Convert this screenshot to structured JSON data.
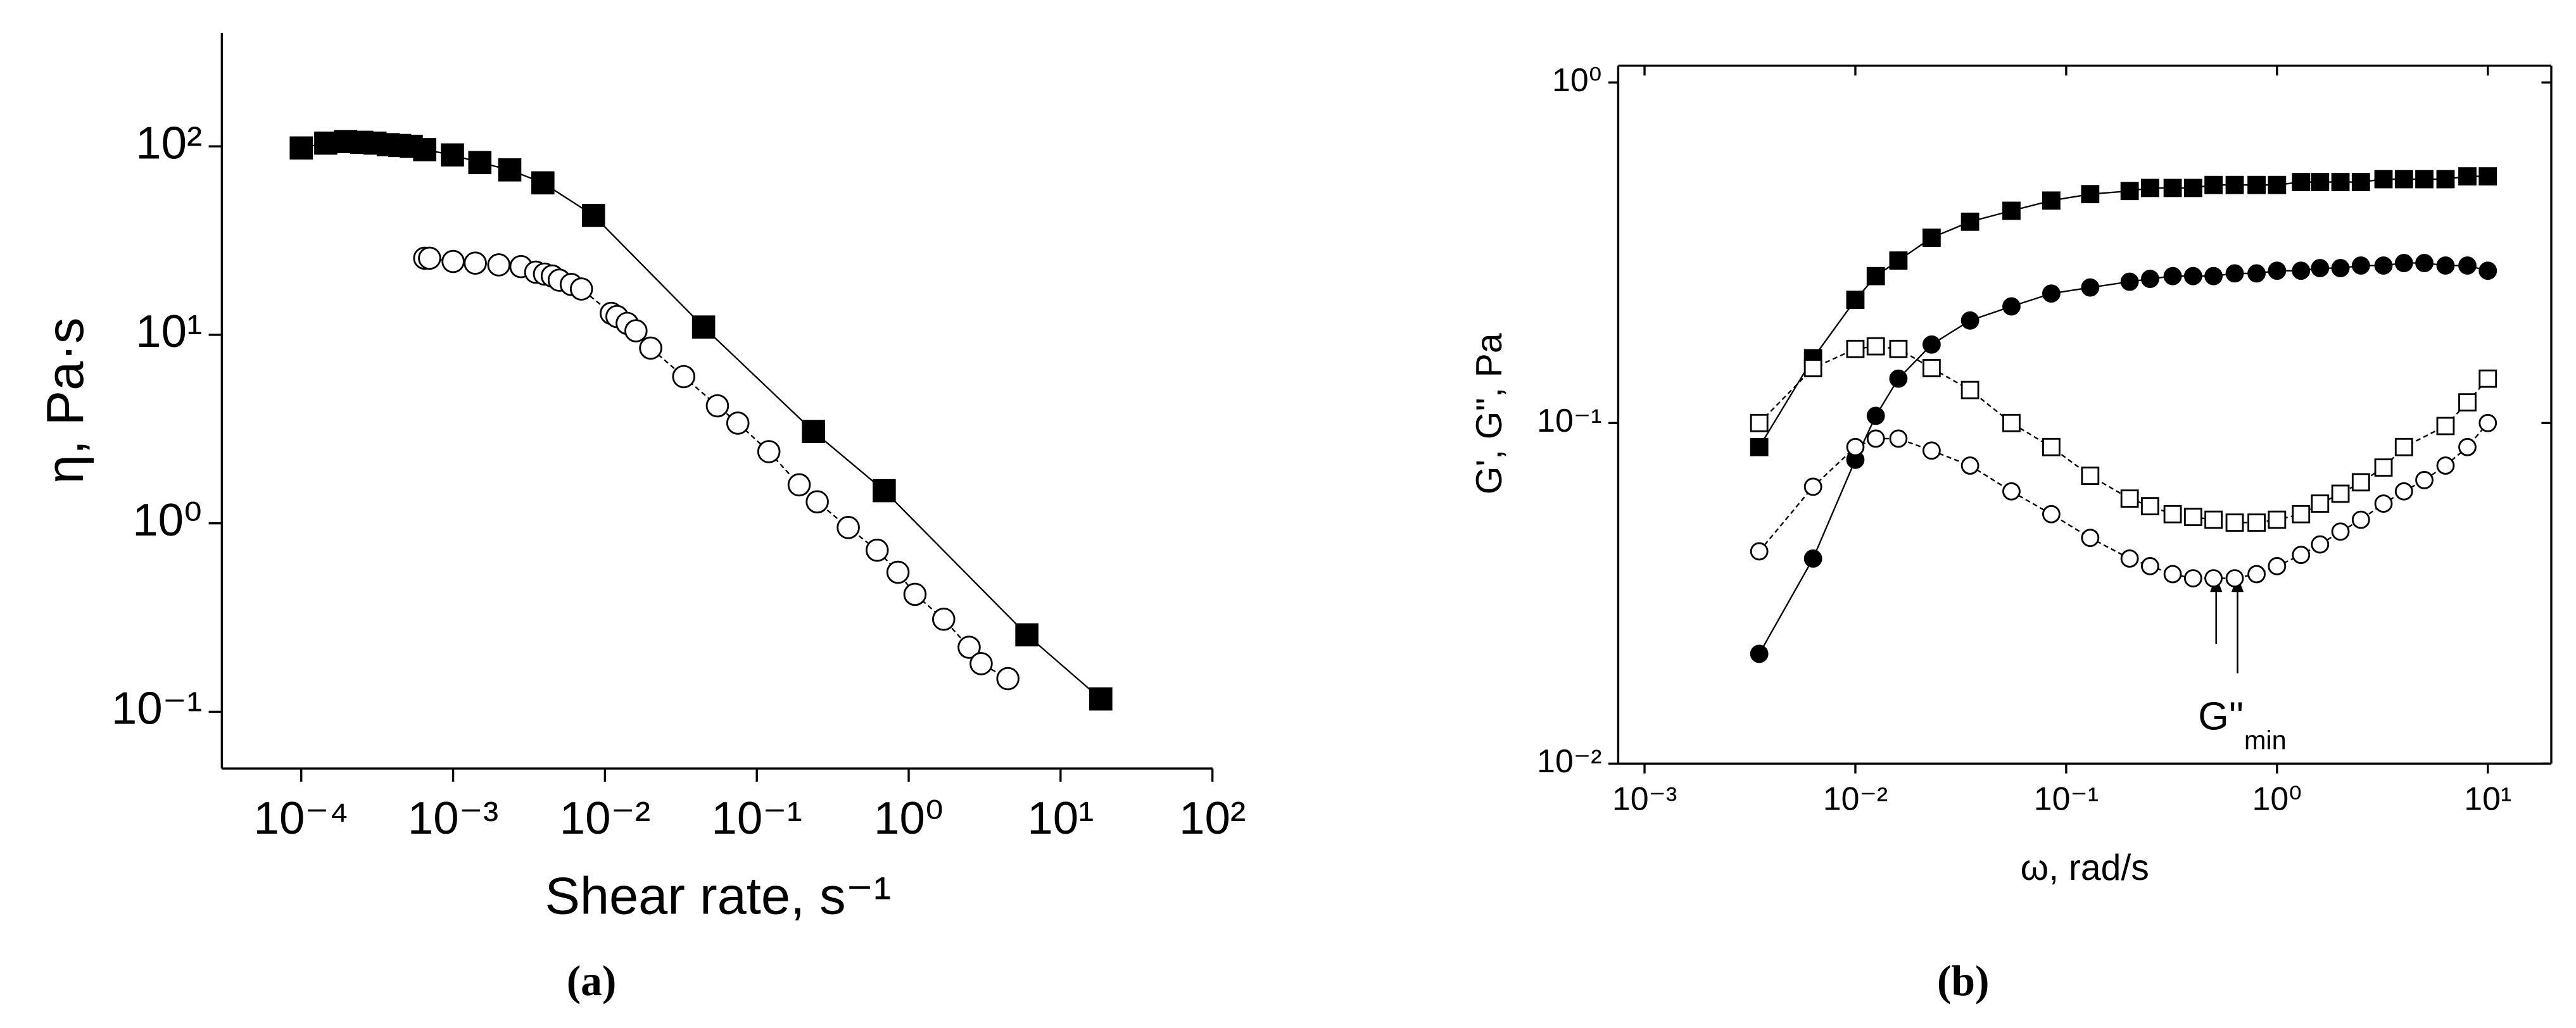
{
  "chart_data": [
    {
      "type": "scatter",
      "log_x": true,
      "log_y": true,
      "caption": "(a)",
      "x_label": "Shear rate, s⁻¹",
      "y_label": "η, Pa·s",
      "xlim": [
        3e-05,
        100
      ],
      "ylim": [
        0.05,
        400
      ],
      "xticks": [
        {
          "value": 0.0001,
          "label": "10⁻⁴"
        },
        {
          "value": 0.001,
          "label": "10⁻³"
        },
        {
          "value": 0.01,
          "label": "10⁻²"
        },
        {
          "value": 0.1,
          "label": "10⁻¹"
        },
        {
          "value": 1,
          "label": "10⁰"
        },
        {
          "value": 10,
          "label": "10¹"
        },
        {
          "value": 100,
          "label": "10²"
        }
      ],
      "yticks": [
        {
          "value": 0.1,
          "label": "10⁻¹"
        },
        {
          "value": 1,
          "label": "10⁰"
        },
        {
          "value": 10,
          "label": "10¹"
        },
        {
          "value": 100,
          "label": "10²"
        }
      ],
      "series": [
        {
          "marker": "square",
          "filled": true,
          "color": "#000000",
          "x": [
            0.0001,
            0.000145,
            0.000196,
            0.00025,
            0.000306,
            0.000374,
            0.000445,
            0.00053,
            0.00065,
            0.00099,
            0.0015,
            0.00236,
            0.0039,
            0.0084,
            0.0446,
            0.236,
            0.69,
            6.0,
            18.4
          ],
          "values": [
            98,
            104,
            106,
            105,
            104,
            102,
            101,
            100,
            96,
            90,
            82,
            75,
            64,
            43,
            11,
            3.07,
            1.49,
            0.256,
            0.117
          ]
        },
        {
          "marker": "circle",
          "filled": false,
          "color": "#000000",
          "x": [
            0.00065,
            0.0007,
            0.001,
            0.0014,
            0.002,
            0.0028,
            0.0035,
            0.004,
            0.0045,
            0.005,
            0.006,
            0.007,
            0.011,
            0.012,
            0.014,
            0.016,
            0.02,
            0.033,
            0.055,
            0.075,
            0.12,
            0.19,
            0.25,
            0.4,
            0.62,
            0.85,
            1.1,
            1.7,
            2.5,
            3.0,
            4.5
          ],
          "values": [
            25.5,
            25.5,
            24.5,
            24,
            23.5,
            23,
            21.5,
            21,
            20.5,
            19.5,
            18.5,
            17.5,
            13,
            12.5,
            11.5,
            10.5,
            8.5,
            6,
            4.2,
            3.4,
            2.4,
            1.6,
            1.3,
            0.95,
            0.72,
            0.55,
            0.42,
            0.31,
            0.22,
            0.18,
            0.15
          ]
        }
      ]
    },
    {
      "type": "scatter",
      "log_x": true,
      "log_y": true,
      "caption": "(b)",
      "x_label": "ω,  rad/s",
      "y_label": "G', G'', Pa",
      "xlim": [
        0.00075,
        20
      ],
      "ylim": [
        0.01,
        1.12
      ],
      "xticks": [
        {
          "value": 0.001,
          "label": "10⁻³"
        },
        {
          "value": 0.01,
          "label": "10⁻²"
        },
        {
          "value": 0.1,
          "label": "10⁻¹"
        },
        {
          "value": 1,
          "label": "10⁰"
        },
        {
          "value": 10,
          "label": "10¹"
        }
      ],
      "yticks": [
        {
          "value": 0.01,
          "label": "10⁻²"
        },
        {
          "value": 0.1,
          "label": "10⁻¹"
        },
        {
          "value": 1,
          "label": "10⁰"
        }
      ],
      "annotation": {
        "text": "G''",
        "subscript": "min"
      },
      "series": [
        {
          "marker": "square",
          "filled": true,
          "color": "#000000",
          "x": [
            0.0035,
            0.0063,
            0.01,
            0.0125,
            0.016,
            0.023,
            0.035,
            0.055,
            0.085,
            0.13,
            0.2,
            0.25,
            0.32,
            0.4,
            0.5,
            0.63,
            0.8,
            1,
            1.3,
            1.6,
            2,
            2.5,
            3.2,
            4,
            5,
            6.3,
            8,
            10
          ],
          "values": [
            0.085,
            0.155,
            0.23,
            0.27,
            0.3,
            0.35,
            0.39,
            0.42,
            0.45,
            0.47,
            0.48,
            0.49,
            0.49,
            0.49,
            0.5,
            0.5,
            0.5,
            0.5,
            0.51,
            0.51,
            0.51,
            0.51,
            0.52,
            0.52,
            0.52,
            0.52,
            0.53,
            0.53
          ]
        },
        {
          "marker": "circle",
          "filled": true,
          "color": "#000000",
          "x": [
            0.0035,
            0.0063,
            0.01,
            0.0125,
            0.016,
            0.023,
            0.035,
            0.055,
            0.085,
            0.13,
            0.2,
            0.25,
            0.32,
            0.4,
            0.5,
            0.63,
            0.8,
            1,
            1.3,
            1.6,
            2,
            2.5,
            3.2,
            4,
            5,
            6.3,
            8,
            10
          ],
          "values": [
            0.021,
            0.04,
            0.078,
            0.105,
            0.135,
            0.17,
            0.2,
            0.22,
            0.24,
            0.25,
            0.26,
            0.265,
            0.27,
            0.27,
            0.27,
            0.275,
            0.275,
            0.28,
            0.28,
            0.285,
            0.285,
            0.29,
            0.29,
            0.295,
            0.295,
            0.29,
            0.29,
            0.28
          ]
        },
        {
          "marker": "square",
          "filled": false,
          "color": "#000000",
          "x": [
            0.0035,
            0.0063,
            0.01,
            0.0125,
            0.016,
            0.023,
            0.035,
            0.055,
            0.085,
            0.13,
            0.2,
            0.25,
            0.32,
            0.4,
            0.5,
            0.63,
            0.8,
            1,
            1.3,
            1.6,
            2,
            2.5,
            3.2,
            4,
            6.3,
            8,
            10
          ],
          "values": [
            0.1,
            0.145,
            0.165,
            0.168,
            0.165,
            0.145,
            0.125,
            0.1,
            0.085,
            0.07,
            0.06,
            0.057,
            0.054,
            0.053,
            0.052,
            0.051,
            0.051,
            0.052,
            0.054,
            0.058,
            0.062,
            0.067,
            0.074,
            0.085,
            0.098,
            0.115,
            0.135
          ]
        },
        {
          "marker": "circle",
          "filled": false,
          "color": "#000000",
          "x": [
            0.0035,
            0.0063,
            0.01,
            0.0125,
            0.016,
            0.023,
            0.035,
            0.055,
            0.085,
            0.13,
            0.2,
            0.25,
            0.32,
            0.4,
            0.5,
            0.63,
            0.8,
            1,
            1.3,
            1.6,
            2,
            2.5,
            3.2,
            4,
            5,
            6.3,
            8,
            10
          ],
          "values": [
            0.042,
            0.065,
            0.085,
            0.09,
            0.09,
            0.083,
            0.075,
            0.063,
            0.054,
            0.046,
            0.04,
            0.038,
            0.036,
            0.035,
            0.035,
            0.035,
            0.036,
            0.038,
            0.041,
            0.044,
            0.048,
            0.052,
            0.058,
            0.063,
            0.068,
            0.075,
            0.085,
            0.1
          ]
        }
      ]
    }
  ]
}
